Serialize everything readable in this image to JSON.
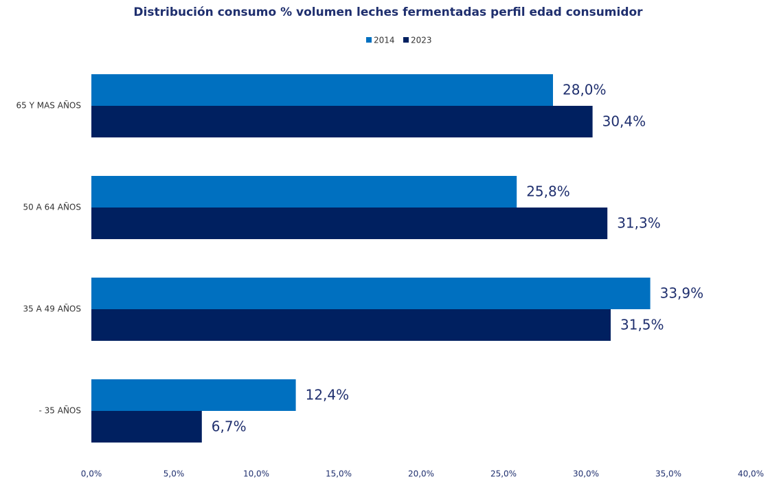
{
  "chart_data": {
    "type": "hbar",
    "title": "Distribución consumo % volumen leches fermentadas perfil edad consumidor",
    "categories": [
      "65 Y MAS AÑOS",
      "50 A 64 AÑOS",
      "35 A 49 AÑOS",
      "- 35 AÑOS"
    ],
    "series": [
      {
        "name": "2014",
        "color": "#0070c0",
        "values": [
          28.0,
          25.8,
          33.9,
          12.4
        ],
        "value_labels": [
          "28,0%",
          "25,8%",
          "33,9%",
          "12,4%"
        ]
      },
      {
        "name": "2023",
        "color": "#002060",
        "values": [
          30.4,
          31.3,
          31.5,
          6.7
        ],
        "value_labels": [
          "30,4%",
          "31,3%",
          "31,5%",
          "6,7%"
        ]
      }
    ],
    "xlim": [
      0,
      40
    ],
    "xticks": [
      {
        "value": 0,
        "label": "0,0%"
      },
      {
        "value": 5,
        "label": "5,0%"
      },
      {
        "value": 10,
        "label": "10,0%"
      },
      {
        "value": 15,
        "label": "15,0%"
      },
      {
        "value": 20,
        "label": "20,0%"
      },
      {
        "value": 25,
        "label": "25,0%"
      },
      {
        "value": 30,
        "label": "30,0%"
      },
      {
        "value": 35,
        "label": "35,0%"
      },
      {
        "value": 40,
        "label": "40,0%"
      }
    ],
    "legend": "top"
  }
}
